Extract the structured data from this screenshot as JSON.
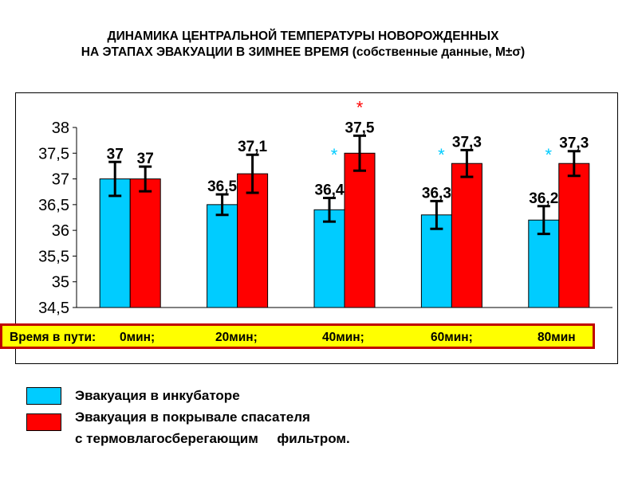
{
  "title_line1": "ДИНАМИКА ЦЕНТРАЛЬНОЙ ТЕМПЕРАТУРЫ НОВОРОЖДЕННЫХ",
  "title_line2": "НА ЭТАПАХ ЭВАКУАЦИИ В ЗИМНЕЕ ВРЕМЯ (собственные данные, M±σ)",
  "time_box": {
    "prefix": "Время в пути:",
    "labels": [
      "0мин;",
      "20мин;",
      "40мин;",
      "60мин;",
      "80мин"
    ]
  },
  "legend": {
    "incubator": "Эвакуация в инкубаторе",
    "blanket_line1": "Эвакуация в покрывале спасателя",
    "blanket_line2": "с термовлагосберегающим     фильтром."
  },
  "colors": {
    "incubator": "#00ccff",
    "blanket": "#ff0000",
    "highlight": "#ffff00",
    "border": "#c00000"
  },
  "chart_data": {
    "type": "bar",
    "categories": [
      "0мин",
      "20мин",
      "40мин",
      "60мин",
      "80мин"
    ],
    "series": [
      {
        "name": "Эвакуация в инкубаторе",
        "color": "#00ccff",
        "values": [
          37,
          36.5,
          36.4,
          36.3,
          36.2
        ],
        "labels": [
          "37",
          "36,5",
          "36,4",
          "36,3",
          "36,2"
        ],
        "error": [
          0.33,
          0.2,
          0.23,
          0.27,
          0.27
        ],
        "markers": [
          "",
          "",
          "*",
          "*",
          "*"
        ],
        "marker_color": "#00ccff"
      },
      {
        "name": "Эвакуация в покрывале спасателя с термовлагосберегающим фильтром.",
        "color": "#ff0000",
        "values": [
          37,
          37.1,
          37.5,
          37.3,
          37.3
        ],
        "labels": [
          "37",
          "37,1",
          "37,5",
          "37,3",
          "37,3"
        ],
        "error": [
          0.24,
          0.37,
          0.34,
          0.26,
          0.24
        ],
        "markers": [
          "",
          "",
          "*",
          "",
          ""
        ],
        "marker_color": "#ff0000"
      }
    ],
    "yticks": [
      "34,5",
      "35",
      "35,5",
      "36",
      "36,5",
      "37",
      "37,5",
      "38"
    ],
    "ylim": [
      34.5,
      38
    ],
    "grid": false
  }
}
